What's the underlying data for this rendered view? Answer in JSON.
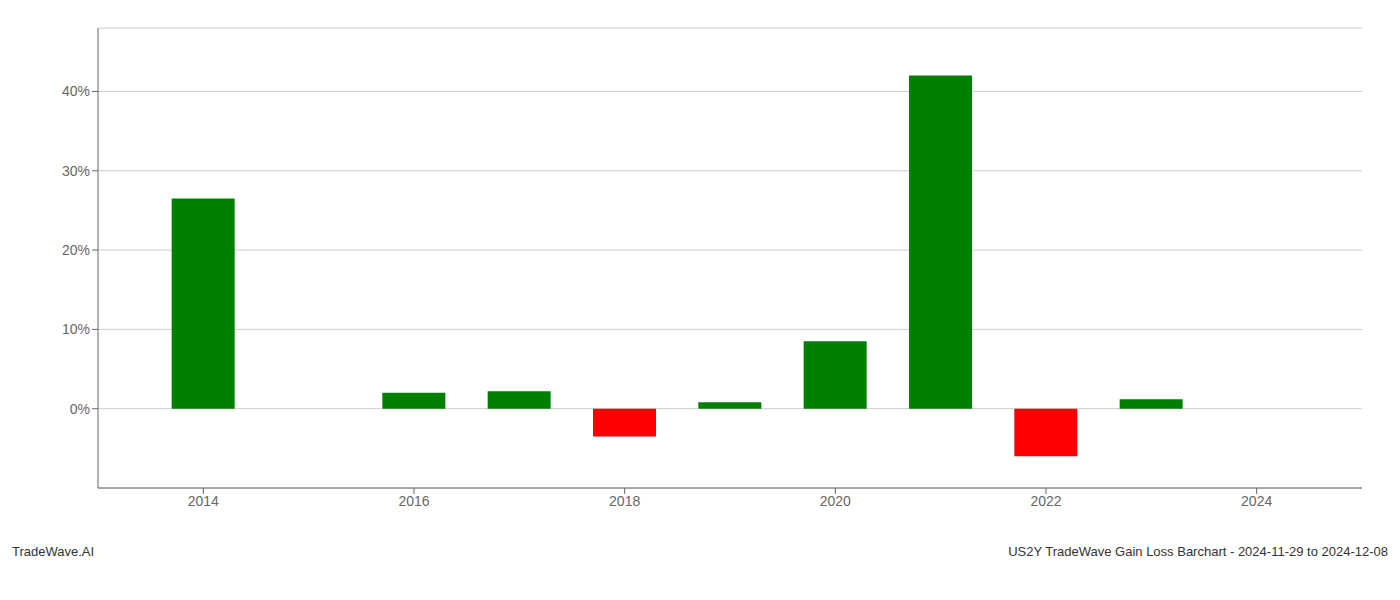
{
  "chart_data": {
    "type": "bar",
    "title": "US2Y TradeWave Gain Loss Barchart - 2024-11-29 to 2024-12-08",
    "annotations": [
      "TradeWave.AI"
    ],
    "x": [
      2014,
      2015,
      2016,
      2017,
      2018,
      2019,
      2020,
      2021,
      2022,
      2023,
      2024
    ],
    "values": [
      0.265,
      0.0,
      0.02,
      0.022,
      -0.035,
      0.008,
      0.085,
      0.42,
      -0.06,
      0.012,
      0.0
    ],
    "colors": [
      "#008000",
      null,
      "#008000",
      "#008000",
      "#ff0000",
      "#008000",
      "#008000",
      "#008000",
      "#ff0000",
      "#008000",
      null
    ],
    "xlim": [
      2013.0,
      2025.0
    ],
    "ylim": [
      -0.1,
      0.48
    ],
    "xticks": [
      2014,
      2016,
      2018,
      2020,
      2022,
      2024
    ],
    "yticks": [
      {
        "value": 0.0,
        "label": "0%"
      },
      {
        "value": 0.1,
        "label": "10%"
      },
      {
        "value": 0.2,
        "label": "20%"
      },
      {
        "value": 0.3,
        "label": "30%"
      },
      {
        "value": 0.4,
        "label": "40%"
      }
    ],
    "grid": true
  }
}
